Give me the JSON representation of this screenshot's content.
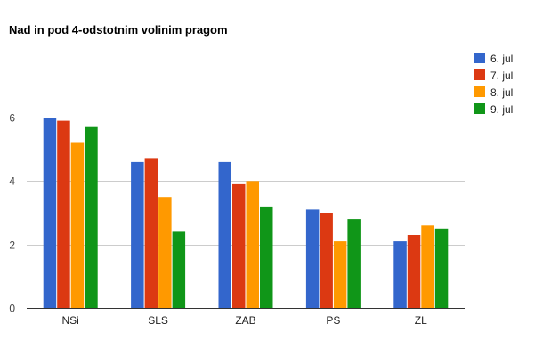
{
  "chart_data": {
    "type": "bar",
    "title": "Nad in pod 4-odstotnim volinim pragom",
    "xlabel": "",
    "ylabel": "",
    "ylim": [
      0,
      6
    ],
    "yticks": [
      0,
      2,
      4,
      6
    ],
    "grid": true,
    "legend_position": "right",
    "categories": [
      "NSi",
      "SLS",
      "ZAB",
      "PS",
      "ZL"
    ],
    "series": [
      {
        "name": "6. jul",
        "color": "#3366cc",
        "values": [
          6.0,
          4.6,
          4.6,
          3.1,
          2.1
        ]
      },
      {
        "name": "7. jul",
        "color": "#dc3912",
        "values": [
          5.9,
          4.7,
          3.9,
          3.0,
          2.3
        ]
      },
      {
        "name": "8. jul",
        "color": "#ff9900",
        "values": [
          5.2,
          3.5,
          4.0,
          2.1,
          2.6
        ]
      },
      {
        "name": "9. jul",
        "color": "#109618",
        "values": [
          5.7,
          2.4,
          3.2,
          2.8,
          2.5
        ]
      }
    ]
  }
}
